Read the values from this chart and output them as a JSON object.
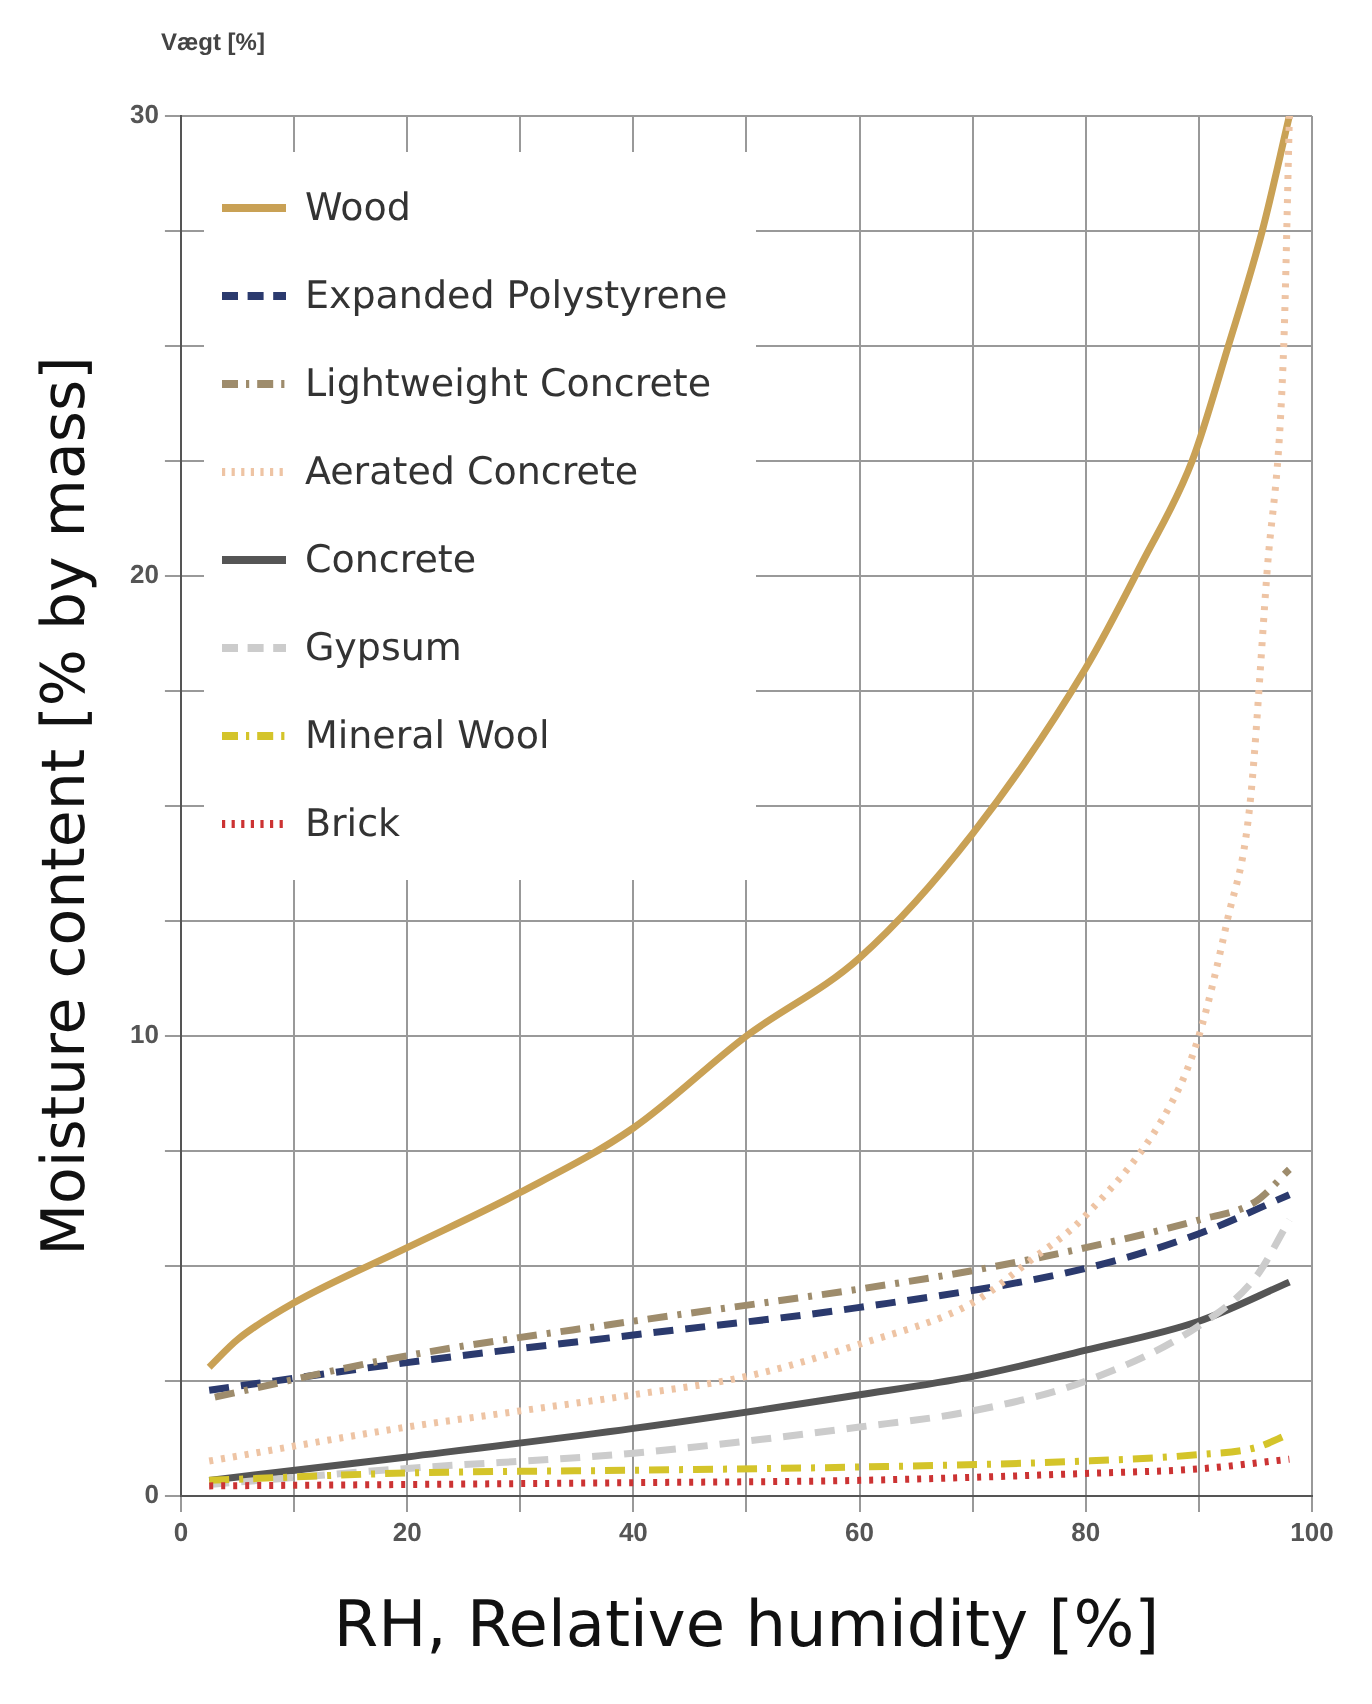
{
  "chart_data": {
    "type": "line",
    "xlabel": "RH, Relative humidity [%]",
    "ylabel": "Moisture content [% by mass]",
    "annotations": [
      "Vægt [%]"
    ],
    "xlim": [
      0,
      100
    ],
    "xticks": [
      0,
      {
        "value": 10,
        "label": null
      },
      20,
      {
        "value": 30,
        "label": null
      },
      40,
      {
        "value": 50,
        "label": null
      },
      60,
      {
        "value": 70,
        "label": null
      },
      80,
      {
        "value": 90,
        "label": null
      },
      100
    ],
    "ylim": [
      0,
      30
    ],
    "yticks": [
      0,
      {
        "value": 2.5,
        "label": null
      },
      {
        "value": 5,
        "label": null
      },
      {
        "value": 7.5,
        "label": null
      },
      10,
      {
        "value": 12.5,
        "label": null
      },
      {
        "value": 15,
        "label": null
      },
      {
        "value": 17.5,
        "label": null
      },
      20,
      {
        "value": 22.5,
        "label": null
      },
      {
        "value": 25,
        "label": null
      },
      {
        "value": 27.5,
        "label": null
      },
      30
    ],
    "grid": true,
    "legend": "top left",
    "marker": "none",
    "series": [
      {
        "name": "Wood",
        "color": "#c9a155",
        "line_style": "solid",
        "x": [
          2.5,
          5,
          10,
          20,
          30,
          40,
          50,
          60,
          70,
          80,
          85,
          89.4,
          92.6,
          95.6,
          98
        ],
        "values": [
          2.8,
          3.4,
          4.2,
          5.4,
          6.6,
          8.0,
          10.0,
          11.7,
          14.4,
          18.0,
          20.3,
          22.5,
          25,
          27.5,
          30
        ]
      },
      {
        "name": "Expanded Polystyrene",
        "color": "#2b3a6e",
        "line_style": "dashed",
        "x": [
          2.5,
          20,
          40,
          60,
          80,
          90,
          98
        ],
        "values": [
          2.3,
          2.9,
          3.5,
          4.1,
          4.95,
          5.7,
          6.55
        ]
      },
      {
        "name": "Lightweight Concrete",
        "color": "#9e8c6c",
        "line_style": "dashdot",
        "x": [
          3,
          20,
          40,
          60,
          70,
          80,
          90,
          95,
          98
        ],
        "values": [
          2.15,
          3.05,
          3.8,
          4.5,
          4.9,
          5.4,
          6.0,
          6.4,
          7.1
        ]
      },
      {
        "name": "Aerated Concrete",
        "color": "#eec4a4",
        "line_style": "dotted",
        "x": [
          2.5,
          20,
          30,
          40,
          50,
          60,
          70,
          75,
          80,
          87.7,
          90,
          92.5,
          94.5,
          96,
          97.5,
          98
        ],
        "values": [
          0.76,
          1.5,
          1.85,
          2.2,
          2.6,
          3.3,
          4.2,
          5.1,
          6.1,
          8.6,
          10,
          12.5,
          15,
          20,
          25,
          30
        ]
      },
      {
        "name": "Concrete",
        "color": "#555555",
        "line_style": "solid",
        "x": [
          2.5,
          20,
          40,
          60,
          70,
          80,
          90,
          98
        ],
        "values": [
          0.34,
          0.85,
          1.47,
          2.2,
          2.6,
          3.17,
          3.8,
          4.65
        ]
      },
      {
        "name": "Gypsum",
        "color": "#cccccc",
        "line_style": "dashed",
        "x": [
          2.5,
          20,
          40,
          60,
          70,
          80,
          90,
          95,
          98
        ],
        "values": [
          0.25,
          0.6,
          0.93,
          1.5,
          1.85,
          2.5,
          3.7,
          4.75,
          6.0
        ]
      },
      {
        "name": "Mineral Wool",
        "color": "#d4c42a",
        "line_style": "dashdot",
        "x": [
          2.5,
          20,
          40,
          60,
          80,
          90,
          95,
          98
        ],
        "values": [
          0.34,
          0.5,
          0.56,
          0.63,
          0.76,
          0.9,
          1.05,
          1.35
        ]
      },
      {
        "name": "Brick",
        "color": "#cc3333",
        "line_style": "dotted",
        "x": [
          2.5,
          20,
          40,
          60,
          80,
          90,
          98
        ],
        "values": [
          0.22,
          0.25,
          0.29,
          0.34,
          0.49,
          0.59,
          0.8
        ]
      }
    ]
  }
}
